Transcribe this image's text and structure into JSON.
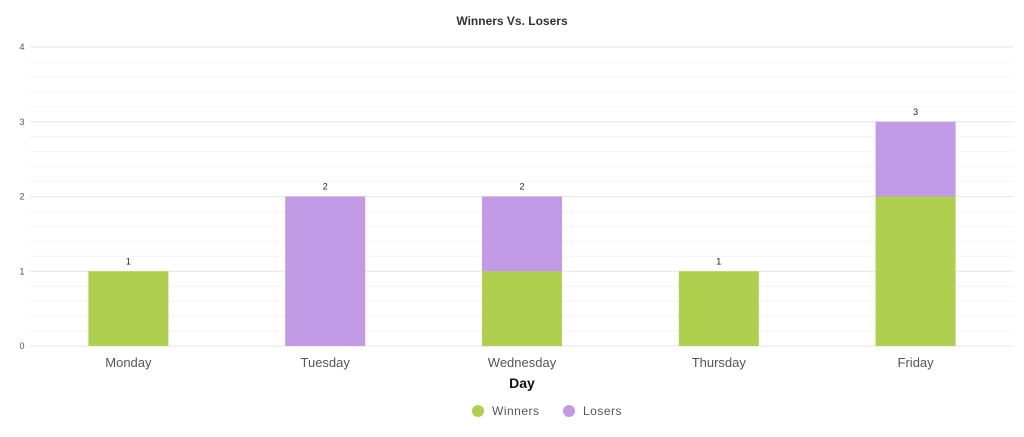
{
  "chart_data": {
    "type": "bar",
    "stacked": true,
    "title": "Winners Vs. Losers",
    "xlabel": "Day",
    "ylabel": "",
    "categories": [
      "Monday",
      "Tuesday",
      "Wednesday",
      "Thursday",
      "Friday"
    ],
    "series": [
      {
        "name": "Winners",
        "color": "#afcf4e",
        "values": [
          1,
          0,
          1,
          1,
          2
        ]
      },
      {
        "name": "Losers",
        "color": "#c39ae6",
        "values": [
          0,
          2,
          1,
          0,
          1
        ]
      }
    ],
    "totals": [
      1,
      2,
      2,
      1,
      3
    ],
    "ylim": [
      0,
      4
    ],
    "yticks": [
      0,
      1,
      2,
      3,
      4
    ],
    "grid": true,
    "legend_position": "bottom-center"
  }
}
